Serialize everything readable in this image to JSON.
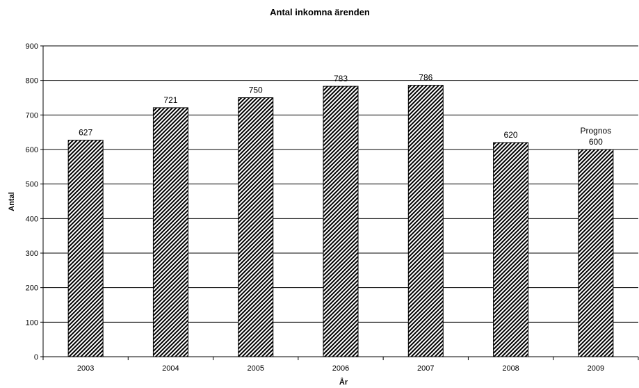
{
  "chart_data": {
    "type": "bar",
    "title": "Antal inkomna ärenden",
    "xlabel": "År",
    "ylabel": "Antal",
    "categories": [
      "2003",
      "2004",
      "2005",
      "2006",
      "2007",
      "2008",
      "2009"
    ],
    "values": [
      627,
      721,
      750,
      783,
      786,
      620,
      600
    ],
    "data_labels": [
      "627",
      "721",
      "750",
      "783",
      "786",
      "620",
      "600"
    ],
    "annotations": [
      {
        "category": "2009",
        "text": "Prognos"
      }
    ],
    "ylim": [
      0,
      900
    ],
    "yticks": [
      0,
      100,
      200,
      300,
      400,
      500,
      600,
      700,
      800,
      900
    ],
    "grid": true,
    "bar_fill": "diagonal-hatch",
    "bar_color": "#000000",
    "background": "#ffffff"
  }
}
